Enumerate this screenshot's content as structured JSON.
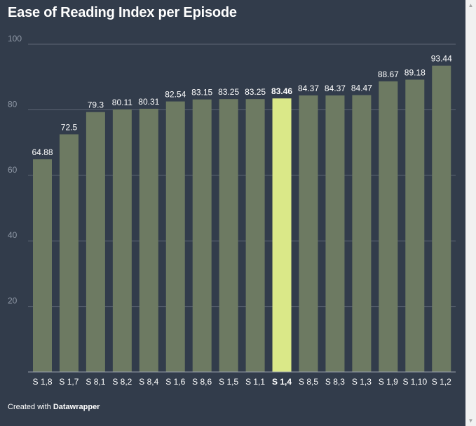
{
  "chart_data": {
    "type": "bar",
    "title": "Ease of Reading Index per Episode",
    "categories": [
      "S 1,8",
      "S 1,7",
      "S 8,1",
      "S 8,2",
      "S 8,4",
      "S 1,6",
      "S 8,6",
      "S 1,5",
      "S 1,1",
      "S 1,4",
      "S 8,5",
      "S 8,3",
      "S 1,3",
      "S 1,9",
      "S 1,10",
      "S 1,2"
    ],
    "values": [
      64.88,
      72.5,
      79.3,
      80.11,
      80.31,
      82.54,
      83.15,
      83.25,
      83.25,
      83.46,
      84.37,
      84.37,
      84.47,
      88.67,
      89.18,
      93.44
    ],
    "value_labels": [
      "64.88",
      "72.5",
      "79.3",
      "80.11",
      "80.31",
      "82.54",
      "83.15",
      "83.25",
      "83.25",
      "83.46",
      "84.37",
      "84.37",
      "84.47",
      "88.67",
      "89.18",
      "93.44"
    ],
    "highlight_index": 9,
    "ylim": [
      0,
      100
    ],
    "yticks": [
      20,
      40,
      60,
      80,
      100
    ],
    "xlabel": "",
    "ylabel": "",
    "grid": true,
    "colors": {
      "background": "#323c4b",
      "bar": "#6d7a62",
      "highlight": "#dae888",
      "grid": "#5d6674",
      "axis_text": "#8f98a6",
      "label_text": "#ffffff"
    }
  },
  "credit": {
    "prefix": "Created with",
    "brand": "Datawrapper"
  },
  "scrollbar": {
    "up_icon": "▲",
    "down_icon": "▼"
  }
}
